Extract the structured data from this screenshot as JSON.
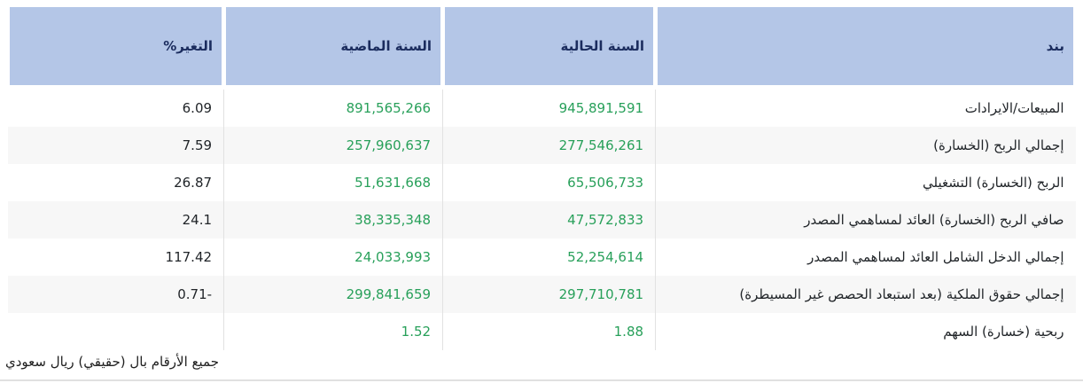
{
  "table": {
    "columns": [
      {
        "key": "item",
        "label": "بند"
      },
      {
        "key": "current_year",
        "label": "السنة الحالية"
      },
      {
        "key": "previous_year",
        "label": "السنة الماضية"
      },
      {
        "key": "change_pct",
        "label": "التغير%"
      }
    ],
    "rows": [
      {
        "item": "المبيعات/الايرادات",
        "current_year": "945,891,591",
        "previous_year": "891,565,266",
        "change_pct": "6.09"
      },
      {
        "item": "إجمالي الربح (الخسارة)",
        "current_year": "277,546,261",
        "previous_year": "257,960,637",
        "change_pct": "7.59"
      },
      {
        "item": "الربح (الخسارة) التشغيلي",
        "current_year": "65,506,733",
        "previous_year": "51,631,668",
        "change_pct": "26.87"
      },
      {
        "item": "صافي الربح (الخسارة) العائد لمساهمي المصدر",
        "current_year": "47,572,833",
        "previous_year": "38,335,348",
        "change_pct": "24.1"
      },
      {
        "item": "إجمالي الدخل الشامل العائد لمساهمي المصدر",
        "current_year": "52,254,614",
        "previous_year": "24,033,993",
        "change_pct": "117.42"
      },
      {
        "item": "إجمالي حقوق الملكية (بعد استبعاد الحصص غير المسيطرة)",
        "current_year": "297,710,781",
        "previous_year": "299,841,659",
        "change_pct": "0.71-"
      },
      {
        "item": "ربحية (خسارة) السهم",
        "current_year": "1.88",
        "previous_year": "1.52",
        "change_pct": ""
      }
    ]
  },
  "footer": {
    "note": "جميع الأرقام بال (حقيقي) ريال سعودي"
  },
  "colors": {
    "header_bg": "#b4c6e7",
    "header_text": "#1b2c5e",
    "value_green": "#28a05a",
    "stripe_bg": "#f7f7f7",
    "separator": "#e2e2e2"
  }
}
